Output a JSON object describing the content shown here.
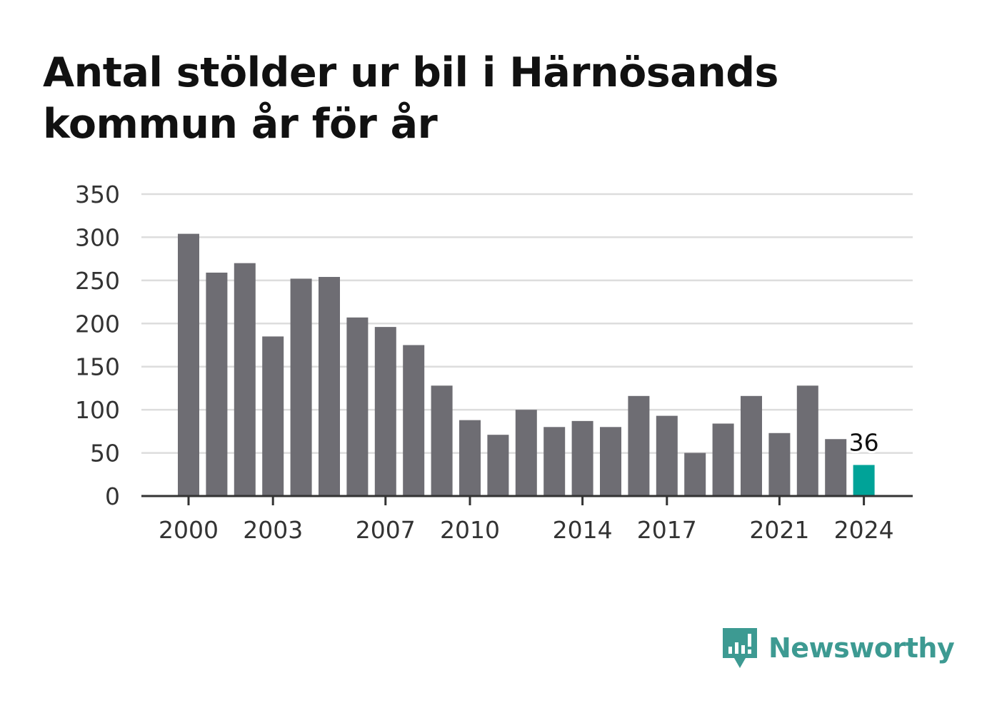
{
  "title": "Antal stölder ur bil i Härnösands kommun år för år",
  "brand": {
    "name": "Newsworthy",
    "icon": "newsworthy-logo-icon",
    "color": "#3d9a92"
  },
  "chart_data": {
    "type": "bar",
    "title": "Antal stölder ur bil i Härnösands kommun år för år",
    "xlabel": "",
    "ylabel": "",
    "ylim": [
      0,
      350
    ],
    "yticks": [
      0,
      50,
      100,
      150,
      200,
      250,
      300,
      350
    ],
    "xtick_labels": [
      "2000",
      "2003",
      "2007",
      "2010",
      "2014",
      "2017",
      "2021",
      "2024"
    ],
    "grid": true,
    "categories": [
      "2000",
      "2001",
      "2002",
      "2003",
      "2004",
      "2005",
      "2006",
      "2007",
      "2008",
      "2009",
      "2010",
      "2011",
      "2012",
      "2013",
      "2014",
      "2015",
      "2016",
      "2017",
      "2018",
      "2019",
      "2020",
      "2021",
      "2022",
      "2023",
      "2024"
    ],
    "values": [
      304,
      259,
      270,
      185,
      252,
      254,
      207,
      196,
      175,
      128,
      88,
      71,
      100,
      80,
      87,
      80,
      116,
      93,
      50,
      84,
      116,
      73,
      128,
      66,
      36
    ],
    "colors": {
      "bar": "#6e6d73",
      "highlight": "#00a398",
      "grid": "#dddddd",
      "axis": "#333333"
    },
    "annotation": {
      "category": "2024",
      "label": "36"
    }
  }
}
